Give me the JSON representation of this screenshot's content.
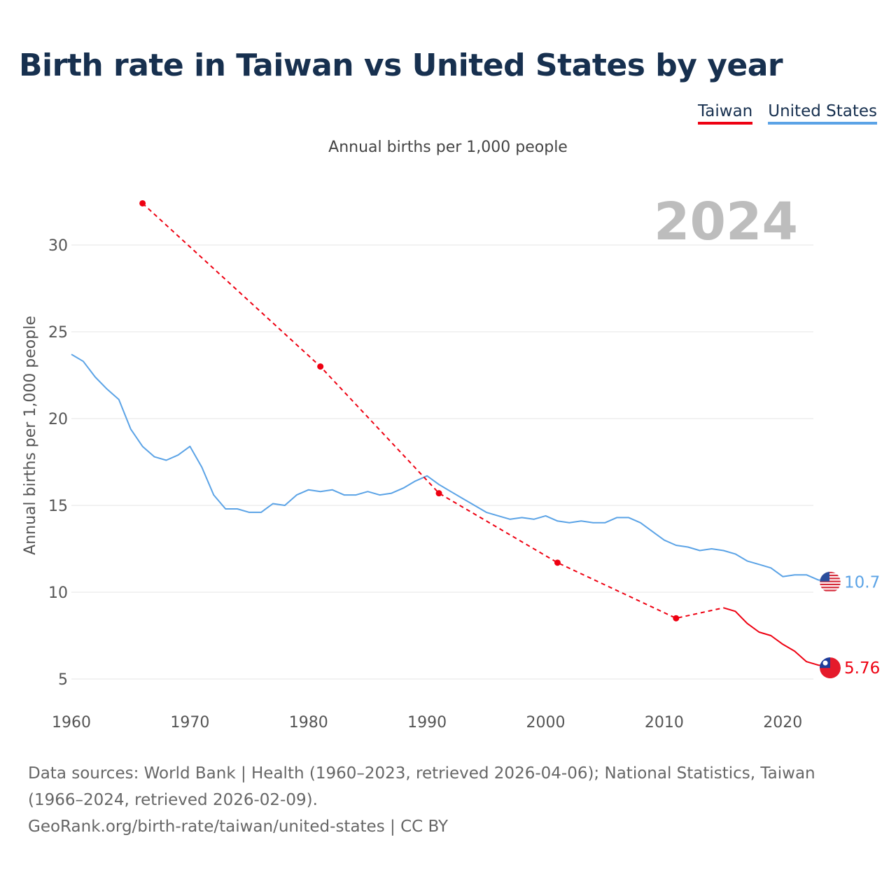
{
  "title": "Birth rate in Taiwan vs United States by year",
  "subtitle": "Annual births per 1,000 people",
  "legend": {
    "taiwan": "Taiwan",
    "united_states": "United States"
  },
  "colors": {
    "taiwan": "#ee0011",
    "united_states": "#5ba3e6",
    "year_watermark": "#bdbdbd",
    "grid": "#e6e6e6",
    "title": "#17304f"
  },
  "footer": {
    "sources": "Data sources: World Bank | Health (1960–2023, retrieved 2026-04-06); National Statistics, Taiwan (1966–2024, retrieved 2026-02-09).",
    "credit": "GeoRank.org/birth-rate/taiwan/united-states | CC BY"
  },
  "chart_data": {
    "type": "line",
    "title": "Birth rate in Taiwan vs United States by year",
    "ylabel": "Annual births per 1,000 people",
    "xlabel": "",
    "current_year": "2024",
    "xlim": [
      1960,
      2024
    ],
    "ylim": [
      4,
      33
    ],
    "x_ticks": [
      1960,
      1970,
      1980,
      1990,
      2000,
      2010,
      2020
    ],
    "y_ticks": [
      5,
      10,
      15,
      20,
      25,
      30
    ],
    "series": [
      {
        "name": "United States",
        "key": "united_states",
        "color": "#5ba3e6",
        "end_label": "10.7",
        "icon": "us-flag-icon",
        "x": [
          1960,
          1961,
          1962,
          1963,
          1964,
          1965,
          1966,
          1967,
          1968,
          1969,
          1970,
          1971,
          1972,
          1973,
          1974,
          1975,
          1976,
          1977,
          1978,
          1979,
          1980,
          1981,
          1982,
          1983,
          1984,
          1985,
          1986,
          1987,
          1988,
          1989,
          1990,
          1991,
          1992,
          1993,
          1994,
          1995,
          1996,
          1997,
          1998,
          1999,
          2000,
          2001,
          2002,
          2003,
          2004,
          2005,
          2006,
          2007,
          2008,
          2009,
          2010,
          2011,
          2012,
          2013,
          2014,
          2015,
          2016,
          2017,
          2018,
          2019,
          2020,
          2021,
          2022,
          2023
        ],
        "values": [
          23.7,
          23.3,
          22.4,
          21.7,
          21.1,
          19.4,
          18.4,
          17.8,
          17.6,
          17.9,
          18.4,
          17.2,
          15.6,
          14.8,
          14.8,
          14.6,
          14.6,
          15.1,
          15.0,
          15.6,
          15.9,
          15.8,
          15.9,
          15.6,
          15.6,
          15.8,
          15.6,
          15.7,
          16.0,
          16.4,
          16.7,
          16.2,
          15.8,
          15.4,
          15.0,
          14.6,
          14.4,
          14.2,
          14.3,
          14.2,
          14.4,
          14.1,
          14.0,
          14.1,
          14.0,
          14.0,
          14.3,
          14.3,
          14.0,
          13.5,
          13.0,
          12.7,
          12.6,
          12.4,
          12.5,
          12.4,
          12.2,
          11.8,
          11.6,
          11.4,
          10.9,
          11.0,
          11.0,
          10.7
        ],
        "extended_to": 2024,
        "segments": [
          {
            "style": "solid",
            "from": 1960,
            "to": 2023
          }
        ]
      },
      {
        "name": "Taiwan",
        "key": "taiwan",
        "color": "#ee0011",
        "end_label": "5.76",
        "icon": "taiwan-flag-icon",
        "x": [
          1966,
          1981,
          1991,
          2001,
          2011,
          2015,
          2016,
          2017,
          2018,
          2019,
          2020,
          2021,
          2022,
          2023,
          2024
        ],
        "values": [
          32.4,
          23.0,
          15.7,
          11.7,
          8.5,
          9.1,
          8.9,
          8.2,
          7.7,
          7.5,
          7.0,
          6.6,
          6.0,
          5.8,
          5.76
        ],
        "markers": [
          1966,
          1981,
          1991,
          2001,
          2011
        ],
        "segments": [
          {
            "style": "dashed",
            "from": 1966,
            "to": 2015
          },
          {
            "style": "solid",
            "from": 2015,
            "to": 2024
          }
        ]
      }
    ]
  }
}
